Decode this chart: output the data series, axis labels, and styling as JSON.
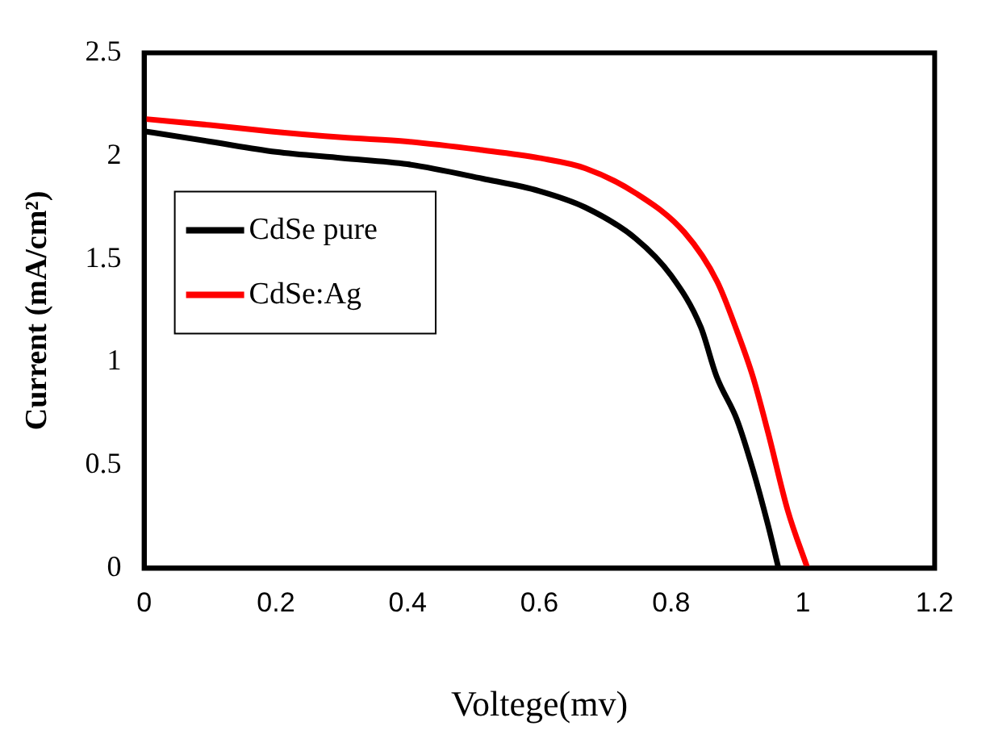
{
  "chart_data": {
    "type": "line",
    "xlabel": "Voltege(mv)",
    "ylabel": "Current (mA/cm²)",
    "xlim": [
      0,
      1.2
    ],
    "xticks": [
      0,
      0.2,
      0.4,
      0.6,
      0.8,
      1,
      1.2
    ],
    "ylim": [
      0,
      2.5
    ],
    "yticks": [
      0,
      0.5,
      1,
      1.5,
      2,
      2.5
    ],
    "grid": false,
    "legend": "top left",
    "marker": "none",
    "line_style": "solid",
    "series": [
      {
        "name": "CdSe pure",
        "color": "#000000",
        "x": [
          0,
          0.1,
          0.2,
          0.3,
          0.4,
          0.514,
          0.6,
          0.67,
          0.746,
          0.8,
          0.845,
          0.869,
          0.9,
          0.924,
          0.947,
          0.963
        ],
        "values": [
          2.12,
          2.07,
          2.02,
          1.99,
          1.96,
          1.89,
          1.83,
          1.75,
          1.6,
          1.42,
          1.17,
          0.93,
          0.72,
          0.48,
          0.21,
          0
        ]
      },
      {
        "name": "CdSe:Ag",
        "color": "#ff0000",
        "x": [
          0,
          0.1,
          0.19,
          0.3,
          0.4,
          0.51,
          0.6,
          0.67,
          0.746,
          0.82,
          0.87,
          0.9,
          0.924,
          0.947,
          0.977,
          1.007
        ],
        "values": [
          2.18,
          2.15,
          2.12,
          2.09,
          2.07,
          2.03,
          1.99,
          1.94,
          1.82,
          1.63,
          1.39,
          1.15,
          0.93,
          0.66,
          0.28,
          0
        ]
      }
    ]
  }
}
